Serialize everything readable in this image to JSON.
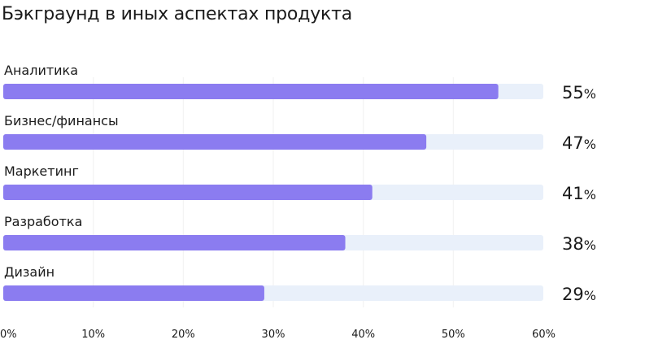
{
  "chart_data": {
    "type": "bar",
    "orientation": "horizontal",
    "title": "Бэкграунд в иных аспектах продукта",
    "categories": [
      "Аналитика",
      "Бизнес/финансы",
      "Маркетинг",
      "Разработка",
      "Дизайн"
    ],
    "values": [
      55,
      47,
      41,
      38,
      29
    ],
    "value_suffix": "%",
    "xlim": [
      0,
      60
    ],
    "xticks": [
      "0%",
      "10%",
      "20%",
      "30%",
      "40%",
      "50%",
      "60%"
    ],
    "xlabel": "",
    "ylabel": "",
    "grid": true,
    "colors": {
      "bar": "#8b7cf0",
      "track": "#e9f0fa",
      "grid": "#f1f1f1"
    }
  }
}
